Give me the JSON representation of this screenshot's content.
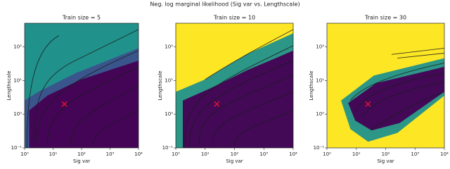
{
  "title": "Neg. log marginal likelihood (Sig var vs. Lengthscale)",
  "chart_data": [
    {
      "type": "heatmap",
      "title": "Train size = 5",
      "xlabel": "Sig var",
      "ylabel": "Lengthscale",
      "colormap": "viridis",
      "xscale": "log",
      "yscale": "log",
      "xlim": [
        1,
        10000
      ],
      "ylim": [
        0.1,
        500
      ],
      "xticks": [
        {
          "value": 1,
          "label": "10⁰"
        },
        {
          "value": 10,
          "label": "10¹"
        },
        {
          "value": 100,
          "label": "10²"
        },
        {
          "value": 1000,
          "label": "10³"
        },
        {
          "value": 10000,
          "label": "10⁴"
        }
      ],
      "yticks": [
        {
          "value": 0.1,
          "label": "10⁻¹"
        },
        {
          "value": 1,
          "label": "10⁰"
        },
        {
          "value": 10,
          "label": "10¹"
        },
        {
          "value": 100,
          "label": "10²"
        }
      ],
      "points": {
        "x": [
          25
        ],
        "y": [
          2
        ],
        "color": "#e8112d"
      }
    },
    {
      "type": "heatmap",
      "title": "Train size = 10",
      "xlabel": "Sig var",
      "ylabel": "Lengthscale",
      "colormap": "viridis",
      "xscale": "log",
      "yscale": "log",
      "xlim": [
        1,
        10000
      ],
      "ylim": [
        0.1,
        500
      ],
      "xticks": [
        {
          "value": 1,
          "label": "10⁰"
        },
        {
          "value": 10,
          "label": "10¹"
        },
        {
          "value": 100,
          "label": "10²"
        },
        {
          "value": 1000,
          "label": "10³"
        },
        {
          "value": 10000,
          "label": "10⁴"
        }
      ],
      "yticks": [
        {
          "value": 0.1,
          "label": "10⁻¹"
        },
        {
          "value": 1,
          "label": "10⁰"
        },
        {
          "value": 10,
          "label": "10¹"
        },
        {
          "value": 100,
          "label": "10²"
        }
      ],
      "points": {
        "x": [
          25
        ],
        "y": [
          2
        ],
        "color": "#e8112d"
      }
    },
    {
      "type": "heatmap",
      "title": "Train size = 30",
      "xlabel": "Sig var",
      "ylabel": "Lengthscale",
      "colormap": "viridis",
      "xscale": "log",
      "yscale": "log",
      "xlim": [
        1,
        10000
      ],
      "ylim": [
        0.1,
        500
      ],
      "xticks": [
        {
          "value": 1,
          "label": "10⁰"
        },
        {
          "value": 10,
          "label": "10¹"
        },
        {
          "value": 100,
          "label": "10²"
        },
        {
          "value": 1000,
          "label": "10³"
        },
        {
          "value": 10000,
          "label": "10⁴"
        }
      ],
      "yticks": [
        {
          "value": 0.1,
          "label": "10⁻¹"
        },
        {
          "value": 1,
          "label": "10⁰"
        },
        {
          "value": 10,
          "label": "10¹"
        },
        {
          "value": 100,
          "label": "10²"
        }
      ],
      "points": {
        "x": [
          25
        ],
        "y": [
          2
        ],
        "color": "#e8112d"
      }
    }
  ]
}
